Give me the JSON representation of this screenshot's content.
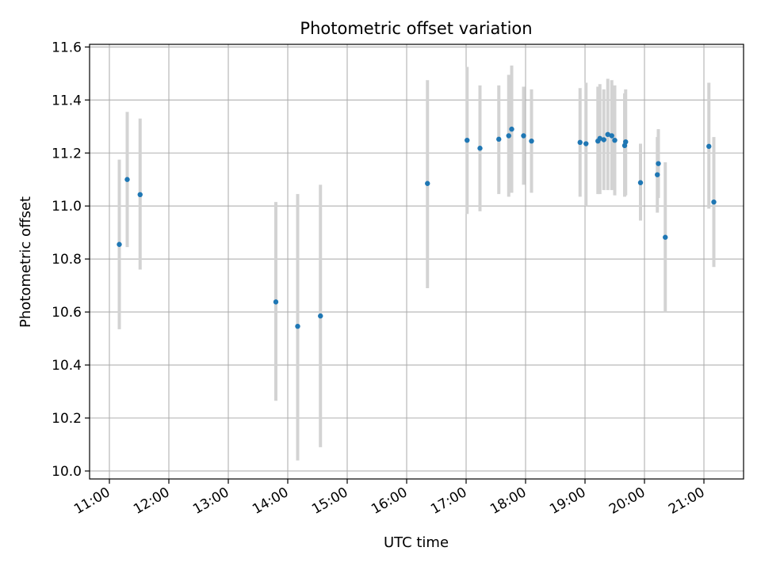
{
  "chart_data": {
    "type": "scatter",
    "title": "Photometric offset variation",
    "xlabel": "UTC time",
    "ylabel": "Photometric offset",
    "xlim": [
      "10:40",
      "21:40"
    ],
    "ylim": [
      9.97,
      11.61
    ],
    "grid": true,
    "y_ticks": [
      "10.0",
      "10.2",
      "10.4",
      "10.6",
      "10.8",
      "11.0",
      "11.2",
      "11.4",
      "11.6"
    ],
    "x_ticks": [
      "11:00",
      "12:00",
      "13:00",
      "14:00",
      "15:00",
      "16:00",
      "17:00",
      "18:00",
      "19:00",
      "20:00",
      "21:00"
    ],
    "colors": {
      "point": "#1f77b4",
      "errorbar": "#d3d3d3",
      "grid": "#b0b0b0"
    },
    "points": [
      {
        "t": "11:10",
        "y": 10.855,
        "lo": 10.535,
        "hi": 11.175
      },
      {
        "t": "11:18",
        "y": 11.1,
        "lo": 10.845,
        "hi": 11.355
      },
      {
        "t": "11:31",
        "y": 11.043,
        "lo": 10.76,
        "hi": 11.33
      },
      {
        "t": "13:48",
        "y": 10.638,
        "lo": 10.265,
        "hi": 11.015
      },
      {
        "t": "14:10",
        "y": 10.546,
        "lo": 10.04,
        "hi": 11.045
      },
      {
        "t": "14:33",
        "y": 10.585,
        "lo": 10.09,
        "hi": 11.08
      },
      {
        "t": "16:21",
        "y": 11.085,
        "lo": 10.69,
        "hi": 11.475
      },
      {
        "t": "17:01",
        "y": 11.248,
        "lo": 10.97,
        "hi": 11.525
      },
      {
        "t": "17:14",
        "y": 11.218,
        "lo": 10.98,
        "hi": 11.455
      },
      {
        "t": "17:33",
        "y": 11.252,
        "lo": 11.045,
        "hi": 11.455
      },
      {
        "t": "17:43",
        "y": 11.265,
        "lo": 11.035,
        "hi": 11.495
      },
      {
        "t": "17:46",
        "y": 11.29,
        "lo": 11.05,
        "hi": 11.53
      },
      {
        "t": "17:58",
        "y": 11.265,
        "lo": 11.08,
        "hi": 11.45
      },
      {
        "t": "18:06",
        "y": 11.245,
        "lo": 11.05,
        "hi": 11.44
      },
      {
        "t": "18:55",
        "y": 11.24,
        "lo": 11.035,
        "hi": 11.445
      },
      {
        "t": "19:01",
        "y": 11.235,
        "lo": 11.0,
        "hi": 11.465
      },
      {
        "t": "19:13",
        "y": 11.245,
        "lo": 11.045,
        "hi": 11.45
      },
      {
        "t": "19:15",
        "y": 11.255,
        "lo": 11.045,
        "hi": 11.46
      },
      {
        "t": "19:19",
        "y": 11.25,
        "lo": 11.06,
        "hi": 11.44
      },
      {
        "t": "19:23",
        "y": 11.27,
        "lo": 11.06,
        "hi": 11.48
      },
      {
        "t": "19:27",
        "y": 11.265,
        "lo": 11.06,
        "hi": 11.475
      },
      {
        "t": "19:30",
        "y": 11.248,
        "lo": 11.04,
        "hi": 11.455
      },
      {
        "t": "19:40",
        "y": 11.228,
        "lo": 11.035,
        "hi": 11.425
      },
      {
        "t": "19:41",
        "y": 11.242,
        "lo": 11.04,
        "hi": 11.44
      },
      {
        "t": "19:56",
        "y": 11.088,
        "lo": 10.945,
        "hi": 11.235
      },
      {
        "t": "20:13",
        "y": 11.118,
        "lo": 10.975,
        "hi": 11.26
      },
      {
        "t": "20:14",
        "y": 11.16,
        "lo": 11.03,
        "hi": 11.29
      },
      {
        "t": "20:21",
        "y": 10.882,
        "lo": 10.6,
        "hi": 11.165
      },
      {
        "t": "21:05",
        "y": 11.225,
        "lo": 10.99,
        "hi": 11.465
      },
      {
        "t": "21:10",
        "y": 11.015,
        "lo": 10.77,
        "hi": 11.26
      }
    ]
  }
}
